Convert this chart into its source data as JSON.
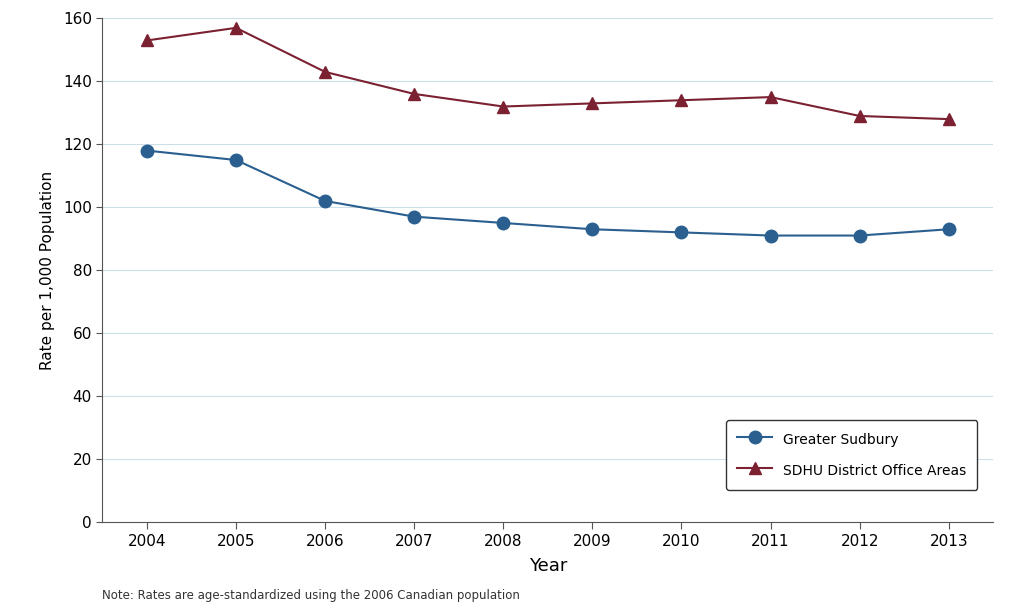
{
  "years": [
    2004,
    2005,
    2006,
    2007,
    2008,
    2009,
    2010,
    2011,
    2012,
    2013
  ],
  "greater_sudbury": [
    118,
    115,
    102,
    97,
    95,
    93,
    92,
    91,
    91,
    93
  ],
  "sdhu_district": [
    153,
    157,
    143,
    136,
    132,
    133,
    134,
    135,
    129,
    128
  ],
  "greater_sudbury_color": "#2a5f8f",
  "sdhu_color": "#7b2132",
  "ylabel": "Rate per 1,000 Population",
  "xlabel": "Year",
  "ylim": [
    0,
    160
  ],
  "yticks": [
    0,
    20,
    40,
    60,
    80,
    100,
    120,
    140,
    160
  ],
  "legend_labels": [
    "Greater Sudbury",
    "SDHU District Office Areas"
  ],
  "note": "Note: Rates are age-standardized using the 2006 Canadian population",
  "background_color": "#ffffff",
  "grid_color": "#ccdee8",
  "xlim_left": 2003.5,
  "xlim_right": 2013.5
}
